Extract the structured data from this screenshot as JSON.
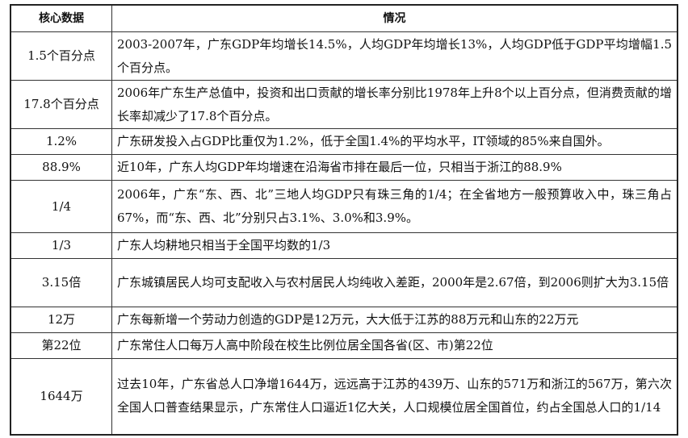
{
  "table": {
    "headers": [
      "核心数据",
      "情况"
    ],
    "rows": [
      {
        "key": "1.5个百分点",
        "desc": "2003-2007年，广东GDP年均增长14.5%，人均GDP年均增长13%，人均GDP低于GDP平均增幅1.5个百分点。"
      },
      {
        "key": "17.8个百分点",
        "desc": "2006年广东生产总值中，投资和出口贡献的增长率分别比1978年上升8个以上百分点，但消费贡献的增长率却减少了17.8个百分点。"
      },
      {
        "key": "1.2%",
        "desc": "广东研发投入占GDP比重仅为1.2%，低于全国1.4%的平均水平，IT领域的85%来自国外。"
      },
      {
        "key": "88.9%",
        "desc": "近10年，广东人均GDP年均增速在沿海省市排在最后一位，只相当于浙江的88.9%"
      },
      {
        "key": "1/4",
        "desc": "2006年，广东“东、西、北”三地人均GDP只有珠三角的1/4；在全省地方一般预算收入中，珠三角占67%，而“东、西、北”分别只占3.1%、3.0%和3.9%。"
      },
      {
        "key": "1/3",
        "desc": "广东人均耕地只相当于全国平均数的1/3"
      },
      {
        "key": "3.15倍",
        "desc": "广东城镇居民人均可支配收入与农村居民人均纯收入差距，2000年是2.67倍，到2006则扩大为3.15倍"
      },
      {
        "key": "12万",
        "desc": "广东每新增一个劳动力创造的GDP是12万元，大大低于江苏的88万元和山东的22万元"
      },
      {
        "key": "第22位",
        "desc": "广东常住人口每万人高中阶段在校生比例位居全国各省(区、市)第22位"
      },
      {
        "key": "1644万",
        "desc": "过去10年，广东省总人口净增1644万，远远高于江苏的439万、山东的571万和浙江的567万，第六次全国人口普查结果显示，广东常住人口逼近1亿大关，人口规模位居全国首位，约占全国总人口的1/14"
      }
    ]
  }
}
